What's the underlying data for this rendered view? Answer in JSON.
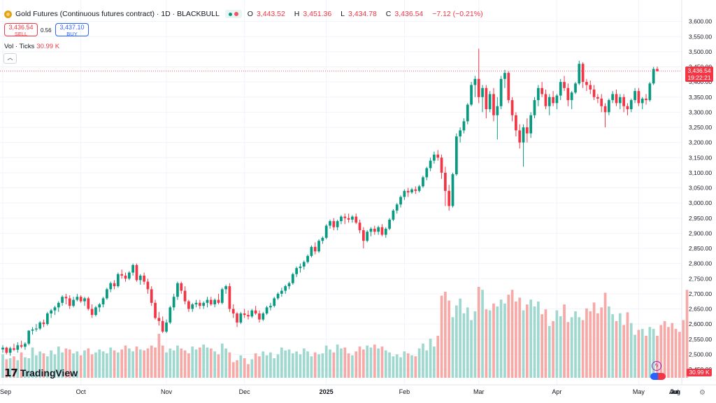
{
  "header": {
    "title": "Gold Futures (Continuous futures contract) · 1D · BLACKBULL",
    "icon": "gold-coin-icon",
    "visibility_icon": "eye-icon",
    "ohlc": {
      "o_label": "O",
      "o": "3,443.52",
      "h_label": "H",
      "h": "3,451.36",
      "l_label": "L",
      "l": "3,434.78",
      "c_label": "C",
      "c": "3,436.54",
      "change": "−7.12 (−0.21%)"
    }
  },
  "trade": {
    "sell_price": "3,436.54",
    "sell_label": "SELL",
    "spread": "0.56",
    "buy_price": "3,437.10",
    "buy_label": "BUY"
  },
  "volume_indicator": {
    "label": "Vol · Ticks",
    "value": "30.99 K"
  },
  "price_axis": {
    "ticks": [
      "3,600.00",
      "3,550.00",
      "3,500.00",
      "3,450.00",
      "3,400.00",
      "3,350.00",
      "3,300.00",
      "3,250.00",
      "3,200.00",
      "3,150.00",
      "3,100.00",
      "3,050.00",
      "3,000.00",
      "2,950.00",
      "2,900.00",
      "2,850.00",
      "2,800.00",
      "2,750.00",
      "2,700.00",
      "2,650.00",
      "2,600.00",
      "2,550.00",
      "2,500.00",
      "2,450.00"
    ],
    "last_price": "3,436.54",
    "countdown": "19:22:21",
    "volume_tag": "30.99 K"
  },
  "time_axis": {
    "labels": [
      "Sep",
      "Oct",
      "Nov",
      "Dec",
      "2025",
      "Feb",
      "Mar",
      "Apr",
      "May",
      "Jun",
      "Jul",
      "Aug"
    ]
  },
  "logo": {
    "text": "TradingView",
    "mark": "17"
  },
  "colors": {
    "up": "#089981",
    "down": "#f23645",
    "vol_up": "#9fd8cf",
    "vol_down": "#f7a9a7",
    "last_price_line": "#f23645"
  },
  "chart_data": {
    "type": "candlestick",
    "symbol": "Gold Futures (Continuous futures contract)",
    "interval": "1D",
    "exchange": "BLACKBULL",
    "ylim": [
      2450,
      3620
    ],
    "last": 3436.54,
    "candles": [
      [
        2516,
        2530,
        2505,
        2522
      ],
      [
        2522,
        2525,
        2500,
        2505
      ],
      [
        2505,
        2525,
        2495,
        2520
      ],
      [
        2520,
        2535,
        2510,
        2515
      ],
      [
        2515,
        2540,
        2505,
        2530
      ],
      [
        2530,
        2545,
        2520,
        2525
      ],
      [
        2525,
        2540,
        2515,
        2535
      ],
      [
        2535,
        2580,
        2530,
        2578
      ],
      [
        2578,
        2590,
        2565,
        2582
      ],
      [
        2582,
        2600,
        2575,
        2585
      ],
      [
        2585,
        2610,
        2580,
        2605
      ],
      [
        2605,
        2615,
        2590,
        2600
      ],
      [
        2600,
        2640,
        2595,
        2635
      ],
      [
        2635,
        2650,
        2620,
        2645
      ],
      [
        2645,
        2660,
        2630,
        2655
      ],
      [
        2655,
        2675,
        2640,
        2670
      ],
      [
        2670,
        2695,
        2660,
        2690
      ],
      [
        2690,
        2700,
        2665,
        2685
      ],
      [
        2685,
        2695,
        2650,
        2660
      ],
      [
        2660,
        2690,
        2655,
        2680
      ],
      [
        2680,
        2700,
        2675,
        2690
      ],
      [
        2690,
        2695,
        2670,
        2675
      ],
      [
        2675,
        2690,
        2660,
        2685
      ],
      [
        2685,
        2690,
        2645,
        2650
      ],
      [
        2650,
        2665,
        2620,
        2630
      ],
      [
        2630,
        2660,
        2625,
        2655
      ],
      [
        2655,
        2670,
        2640,
        2665
      ],
      [
        2665,
        2690,
        2655,
        2685
      ],
      [
        2685,
        2720,
        2680,
        2715
      ],
      [
        2715,
        2740,
        2705,
        2735
      ],
      [
        2735,
        2745,
        2715,
        2725
      ],
      [
        2725,
        2770,
        2720,
        2765
      ],
      [
        2765,
        2780,
        2750,
        2760
      ],
      [
        2760,
        2770,
        2740,
        2750
      ],
      [
        2750,
        2775,
        2745,
        2770
      ],
      [
        2770,
        2800,
        2760,
        2795
      ],
      [
        2795,
        2800,
        2740,
        2745
      ],
      [
        2745,
        2765,
        2730,
        2760
      ],
      [
        2760,
        2770,
        2730,
        2740
      ],
      [
        2740,
        2750,
        2700,
        2715
      ],
      [
        2715,
        2725,
        2660,
        2670
      ],
      [
        2670,
        2680,
        2615,
        2620
      ],
      [
        2620,
        2640,
        2595,
        2610
      ],
      [
        2610,
        2625,
        2570,
        2575
      ],
      [
        2575,
        2615,
        2570,
        2605
      ],
      [
        2605,
        2660,
        2600,
        2655
      ],
      [
        2655,
        2700,
        2645,
        2690
      ],
      [
        2690,
        2740,
        2680,
        2735
      ],
      [
        2735,
        2740,
        2700,
        2710
      ],
      [
        2710,
        2725,
        2665,
        2675
      ],
      [
        2675,
        2680,
        2640,
        2650
      ],
      [
        2650,
        2670,
        2640,
        2665
      ],
      [
        2665,
        2680,
        2655,
        2670
      ],
      [
        2670,
        2680,
        2650,
        2660
      ],
      [
        2660,
        2675,
        2650,
        2670
      ],
      [
        2670,
        2690,
        2655,
        2680
      ],
      [
        2680,
        2690,
        2660,
        2665
      ],
      [
        2665,
        2685,
        2655,
        2680
      ],
      [
        2680,
        2700,
        2665,
        2670
      ],
      [
        2670,
        2720,
        2665,
        2715
      ],
      [
        2715,
        2730,
        2700,
        2725
      ],
      [
        2725,
        2735,
        2640,
        2650
      ],
      [
        2650,
        2665,
        2620,
        2635
      ],
      [
        2635,
        2640,
        2590,
        2605
      ],
      [
        2605,
        2640,
        2600,
        2635
      ],
      [
        2635,
        2650,
        2620,
        2630
      ],
      [
        2630,
        2645,
        2615,
        2625
      ],
      [
        2625,
        2650,
        2620,
        2645
      ],
      [
        2645,
        2660,
        2630,
        2635
      ],
      [
        2635,
        2645,
        2605,
        2615
      ],
      [
        2615,
        2640,
        2610,
        2635
      ],
      [
        2635,
        2660,
        2630,
        2655
      ],
      [
        2655,
        2670,
        2645,
        2660
      ],
      [
        2660,
        2690,
        2655,
        2685
      ],
      [
        2685,
        2705,
        2680,
        2700
      ],
      [
        2700,
        2720,
        2690,
        2710
      ],
      [
        2710,
        2730,
        2700,
        2725
      ],
      [
        2725,
        2740,
        2715,
        2735
      ],
      [
        2735,
        2770,
        2730,
        2765
      ],
      [
        2765,
        2790,
        2755,
        2785
      ],
      [
        2785,
        2800,
        2770,
        2790
      ],
      [
        2790,
        2810,
        2780,
        2805
      ],
      [
        2805,
        2830,
        2800,
        2825
      ],
      [
        2825,
        2860,
        2820,
        2855
      ],
      [
        2855,
        2870,
        2830,
        2840
      ],
      [
        2840,
        2880,
        2835,
        2875
      ],
      [
        2875,
        2890,
        2865,
        2885
      ],
      [
        2885,
        2930,
        2880,
        2925
      ],
      [
        2925,
        2945,
        2915,
        2940
      ],
      [
        2940,
        2950,
        2910,
        2920
      ],
      [
        2920,
        2945,
        2910,
        2940
      ],
      [
        2940,
        2960,
        2930,
        2955
      ],
      [
        2955,
        2965,
        2930,
        2950
      ],
      [
        2950,
        2965,
        2935,
        2945
      ],
      [
        2945,
        2960,
        2935,
        2955
      ],
      [
        2955,
        2965,
        2930,
        2935
      ],
      [
        2935,
        2945,
        2900,
        2910
      ],
      [
        2910,
        2920,
        2850,
        2875
      ],
      [
        2875,
        2910,
        2870,
        2905
      ],
      [
        2905,
        2920,
        2890,
        2915
      ],
      [
        2915,
        2925,
        2895,
        2905
      ],
      [
        2905,
        2925,
        2895,
        2920
      ],
      [
        2920,
        2930,
        2890,
        2895
      ],
      [
        2895,
        2920,
        2885,
        2915
      ],
      [
        2915,
        2950,
        2910,
        2945
      ],
      [
        2945,
        2980,
        2940,
        2975
      ],
      [
        2975,
        3000,
        2965,
        2995
      ],
      [
        2995,
        3025,
        2985,
        3020
      ],
      [
        3020,
        3045,
        3010,
        3040
      ],
      [
        3040,
        3050,
        3020,
        3035
      ],
      [
        3035,
        3050,
        3030,
        3045
      ],
      [
        3045,
        3055,
        3030,
        3040
      ],
      [
        3040,
        3060,
        3035,
        3055
      ],
      [
        3055,
        3090,
        3050,
        3085
      ],
      [
        3085,
        3120,
        3075,
        3115
      ],
      [
        3115,
        3150,
        3105,
        3140
      ],
      [
        3140,
        3170,
        3130,
        3160
      ],
      [
        3160,
        3175,
        3140,
        3150
      ],
      [
        3150,
        3160,
        3080,
        3100
      ],
      [
        3100,
        3120,
        2990,
        3040
      ],
      [
        3040,
        3060,
        2975,
        2990
      ],
      [
        2990,
        3100,
        2985,
        3095
      ],
      [
        3095,
        3230,
        3090,
        3220
      ],
      [
        3220,
        3250,
        3200,
        3240
      ],
      [
        3240,
        3280,
        3230,
        3270
      ],
      [
        3270,
        3330,
        3260,
        3325
      ],
      [
        3325,
        3400,
        3320,
        3390
      ],
      [
        3390,
        3420,
        3350,
        3410
      ],
      [
        3410,
        3510,
        3330,
        3350
      ],
      [
        3350,
        3390,
        3300,
        3380
      ],
      [
        3380,
        3390,
        3280,
        3310
      ],
      [
        3310,
        3370,
        3300,
        3360
      ],
      [
        3360,
        3380,
        3270,
        3290
      ],
      [
        3290,
        3350,
        3210,
        3320
      ],
      [
        3320,
        3420,
        3310,
        3410
      ],
      [
        3410,
        3440,
        3380,
        3430
      ],
      [
        3430,
        3435,
        3330,
        3340
      ],
      [
        3340,
        3350,
        3270,
        3290
      ],
      [
        3290,
        3300,
        3220,
        3240
      ],
      [
        3240,
        3260,
        3180,
        3200
      ],
      [
        3200,
        3260,
        3120,
        3250
      ],
      [
        3250,
        3280,
        3200,
        3230
      ],
      [
        3230,
        3300,
        3215,
        3290
      ],
      [
        3290,
        3350,
        3280,
        3340
      ],
      [
        3340,
        3390,
        3320,
        3380
      ],
      [
        3380,
        3400,
        3350,
        3360
      ],
      [
        3360,
        3375,
        3310,
        3320
      ],
      [
        3320,
        3360,
        3290,
        3350
      ],
      [
        3350,
        3370,
        3320,
        3330
      ],
      [
        3330,
        3360,
        3310,
        3355
      ],
      [
        3355,
        3410,
        3340,
        3400
      ],
      [
        3400,
        3420,
        3370,
        3380
      ],
      [
        3380,
        3395,
        3320,
        3340
      ],
      [
        3340,
        3370,
        3310,
        3365
      ],
      [
        3365,
        3400,
        3360,
        3395
      ],
      [
        3395,
        3470,
        3390,
        3460
      ],
      [
        3460,
        3465,
        3380,
        3400
      ],
      [
        3400,
        3410,
        3370,
        3390
      ],
      [
        3390,
        3405,
        3360,
        3375
      ],
      [
        3375,
        3390,
        3340,
        3350
      ],
      [
        3350,
        3360,
        3330,
        3345
      ],
      [
        3345,
        3360,
        3300,
        3320
      ],
      [
        3320,
        3330,
        3250,
        3300
      ],
      [
        3300,
        3345,
        3290,
        3340
      ],
      [
        3340,
        3370,
        3330,
        3360
      ],
      [
        3360,
        3375,
        3320,
        3330
      ],
      [
        3330,
        3360,
        3310,
        3350
      ],
      [
        3350,
        3360,
        3300,
        3320
      ],
      [
        3320,
        3330,
        3290,
        3310
      ],
      [
        3310,
        3345,
        3300,
        3340
      ],
      [
        3340,
        3380,
        3330,
        3370
      ],
      [
        3370,
        3380,
        3320,
        3330
      ],
      [
        3330,
        3350,
        3310,
        3345
      ],
      [
        3345,
        3360,
        3325,
        3340
      ],
      [
        3340,
        3400,
        3335,
        3395
      ],
      [
        3395,
        3450,
        3390,
        3443
      ],
      [
        3443,
        3451,
        3434,
        3436
      ]
    ],
    "volumes": [
      2.4,
      1.9,
      2.0,
      2.2,
      1.8,
      2.6,
      2.1,
      2.0,
      3.1,
      2.3,
      2.7,
      2.5,
      2.2,
      2.8,
      2.4,
      3.2,
      2.6,
      3.0,
      2.9,
      2.5,
      2.7,
      2.3,
      2.8,
      3.0,
      2.4,
      2.6,
      2.9,
      2.7,
      2.5,
      3.1,
      2.8,
      2.6,
      2.9,
      3.3,
      3.0,
      2.7,
      3.2,
      2.9,
      2.8,
      3.0,
      3.3,
      3.1,
      4.5,
      3.3,
      2.6,
      3.0,
      2.8,
      3.3,
      3.0,
      2.8,
      2.5,
      3.2,
      2.9,
      3.1,
      3.4,
      3.1,
      3.0,
      2.7,
      2.4,
      3.5,
      3.0,
      2.6,
      1.6,
      1.8,
      2.3,
      2.0,
      1.4,
      1.9,
      2.5,
      2.2,
      2.7,
      2.3,
      2.6,
      2.0,
      2.4,
      3.1,
      2.8,
      2.9,
      2.5,
      2.7,
      2.4,
      3.0,
      2.7,
      2.2,
      2.6,
      2.4,
      2.5,
      3.3,
      2.9,
      2.6,
      3.4,
      3.0,
      3.1,
      2.5,
      2.3,
      2.7,
      3.2,
      2.9,
      3.3,
      3.1,
      3.4,
      3.0,
      3.2,
      2.8,
      2.6,
      2.2,
      2.4,
      2.1,
      2.7,
      2.5,
      2.3,
      2.2,
      3.0,
      3.5,
      2.8,
      4.0,
      3.2,
      4.3,
      8.4,
      8.8,
      7.9,
      6.2,
      7.4,
      8.1,
      6.6,
      7.2,
      5.9,
      6.8,
      9.3,
      9.0,
      7.0,
      6.9,
      7.6,
      7.3,
      8.0,
      7.6,
      8.5,
      9.0,
      7.8,
      8.2,
      6.9,
      7.5,
      8.0,
      7.3,
      7.8,
      6.5,
      7.0,
      5.3,
      5.8,
      6.9,
      6.3,
      7.5,
      5.7,
      6.2,
      6.8,
      6.2,
      5.9,
      7.1,
      6.8,
      7.7,
      6.6,
      7.2,
      8.7,
      7.3,
      6.5,
      5.8,
      6.6,
      5.4,
      6.7,
      5.6,
      4.4,
      4.9,
      5.0,
      4.3,
      5.2,
      5.0,
      4.3,
      5.4,
      5.8,
      5.2,
      5.6,
      5.0,
      4.7,
      5.9,
      9.0
    ]
  }
}
